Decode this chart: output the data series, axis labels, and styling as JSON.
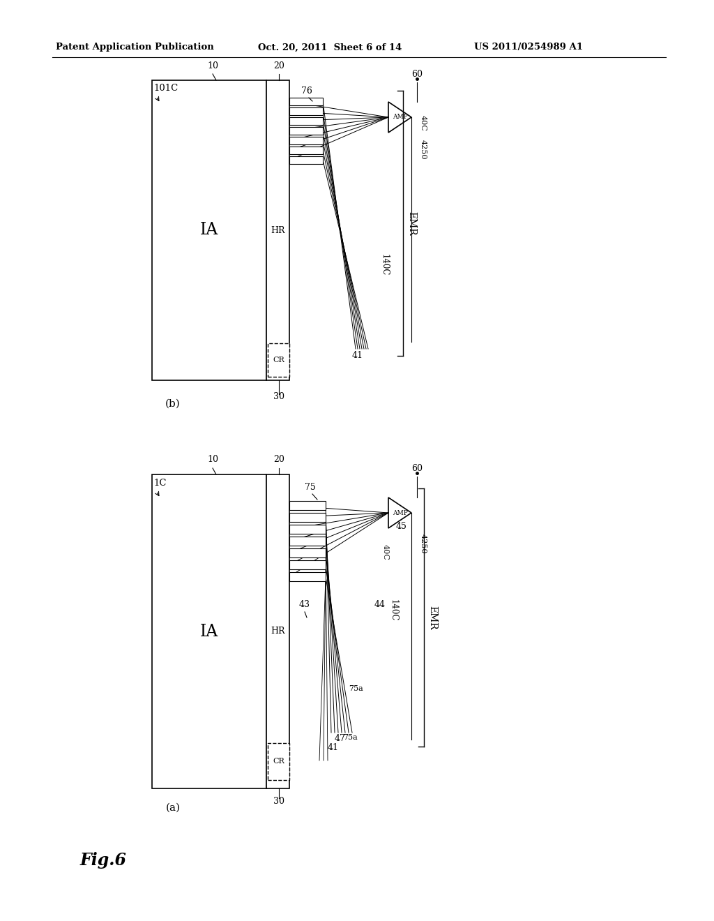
{
  "bg_color": "#ffffff",
  "header_left": "Patent Application Publication",
  "header_mid": "Oct. 20, 2011  Sheet 6 of 14",
  "header_right": "US 2011/0254989 A1",
  "fig_label": "Fig.6"
}
